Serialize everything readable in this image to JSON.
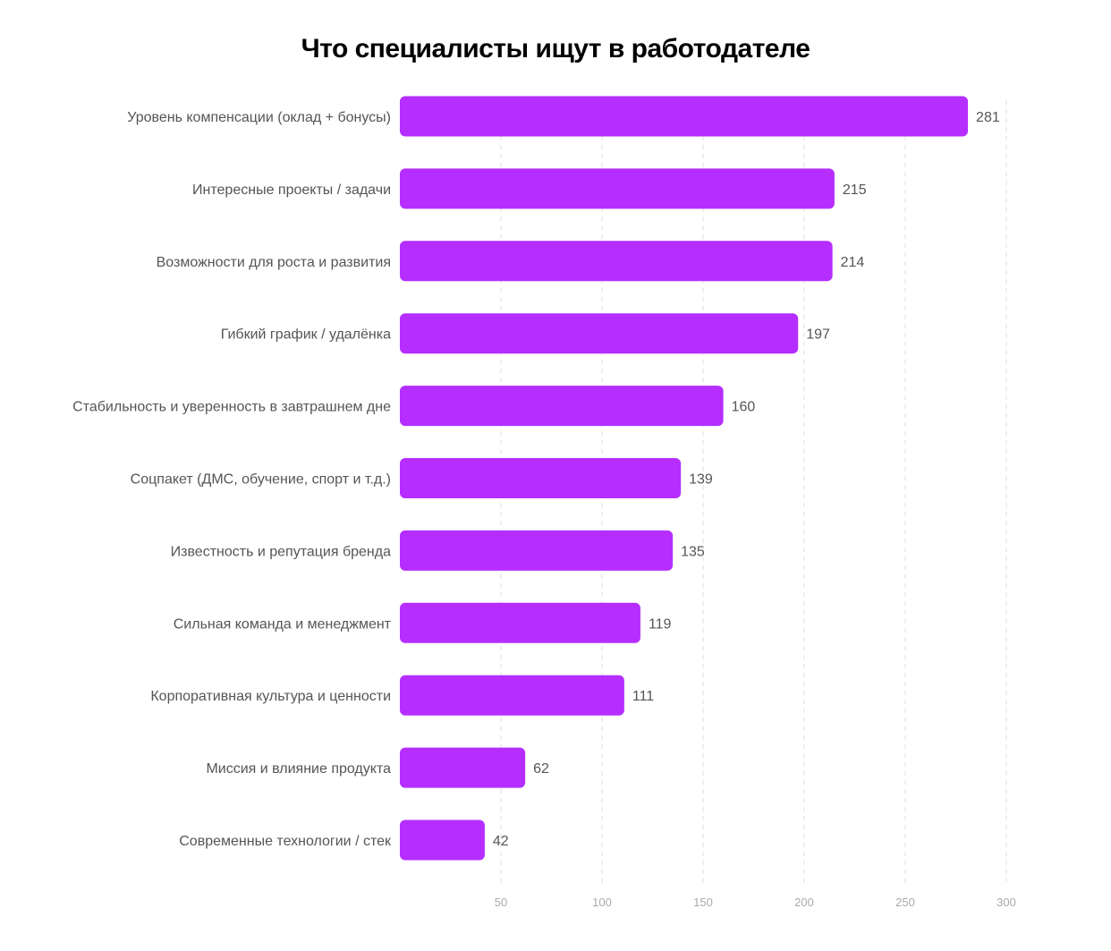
{
  "chart_data": {
    "type": "bar",
    "orientation": "horizontal",
    "title": "Что специалисты ищут в работодателе",
    "categories": [
      "Уровень компенсации (оклад + бонусы)",
      "Интересные проекты / задачи",
      "Возможности для роста и развития",
      "Гибкий график / удалёнка",
      "Стабильность и уверенность в завтрашнем дне",
      "Соцпакет (ДМС, обучение, спорт и т.д.)",
      "Известность и репутация бренда",
      "Сильная команда и менеджмент",
      "Корпоративная культура и ценности",
      "Миссия и влияние продукта",
      "Современные технологии / стек"
    ],
    "values": [
      281,
      215,
      214,
      197,
      160,
      139,
      135,
      119,
      111,
      62,
      42
    ],
    "xlim": [
      0,
      300
    ],
    "xticks": [
      50,
      100,
      150,
      200,
      250,
      300
    ],
    "xlabel": "",
    "ylabel": "",
    "grid": "vertical dashed",
    "bar_color": "#b52eff"
  }
}
